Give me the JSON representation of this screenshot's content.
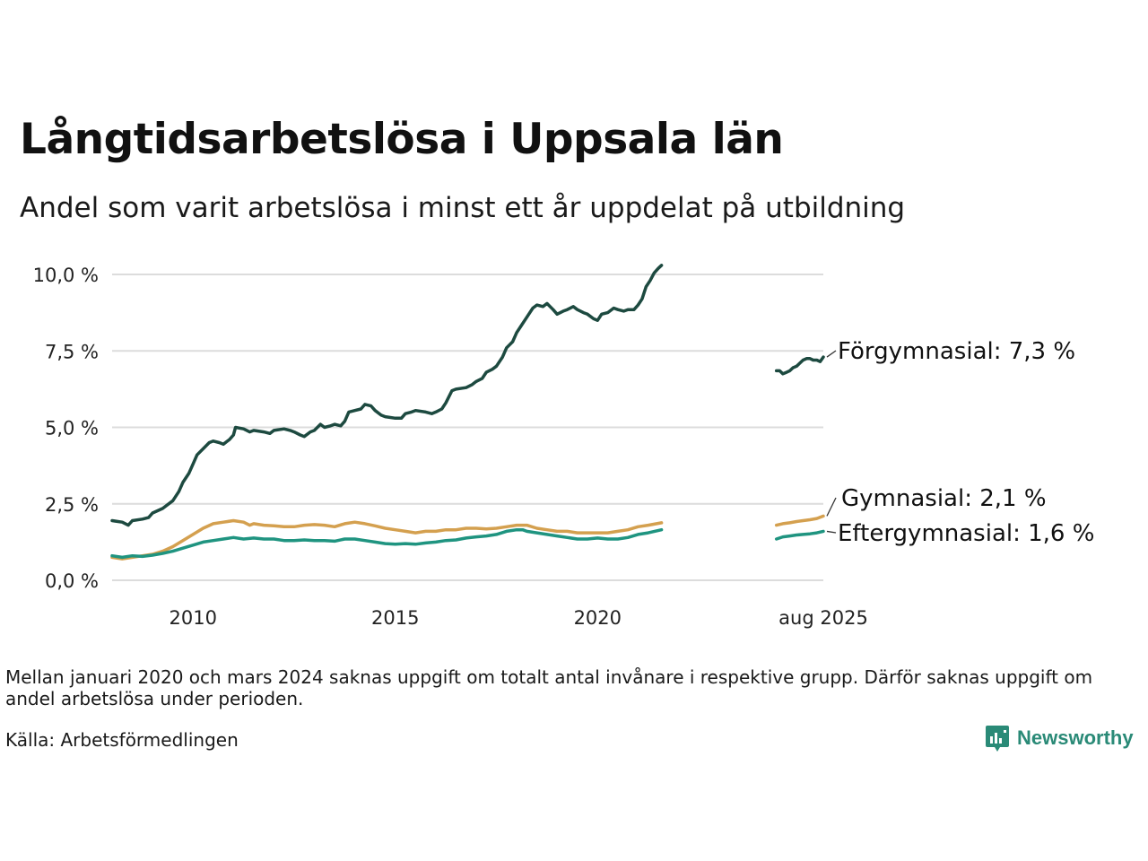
{
  "header": {
    "title": "Långtidsarbetslösa i Uppsala län",
    "subtitle": "Andel som varit arbetslösa i minst ett år uppdelat på utbildning"
  },
  "footer": {
    "note": "Mellan januari 2020 och mars 2024 saknas uppgift om totalt antal invånare i respektive grupp. Därför saknas uppgift om andel arbetslösa under perioden.",
    "source": "Källa: Arbetsförmedlingen",
    "logo_text": "Newsworthy",
    "logo_color": "#2a8a77"
  },
  "chart_data": {
    "type": "line",
    "x_unit": "decimal year",
    "xlim": [
      2008.0,
      2025.58
    ],
    "ylim": [
      0,
      10
    ],
    "y_ticks": [
      0,
      2.5,
      5,
      7.5,
      10
    ],
    "y_tick_labels": [
      "0,0 %",
      "2,5 %",
      "5,0 %",
      "7,5 %",
      "10,0 %"
    ],
    "x_ticks": [
      2010,
      2015,
      2020,
      2025.58
    ],
    "x_tick_labels": [
      "2010",
      "2015",
      "2020",
      "aug 2025"
    ],
    "grid": "horizontal",
    "legend": "direct labels at line ends",
    "series": [
      {
        "name": "Förgymnasial",
        "color": "#1d4a40",
        "end_label": "Förgymnasial: 7,3 %",
        "segments": [
          [
            [
              2008.0,
              1.95
            ],
            [
              2008.25,
              1.9
            ],
            [
              2008.4,
              1.8
            ],
            [
              2008.5,
              1.95
            ],
            [
              2008.75,
              2.0
            ],
            [
              2008.9,
              2.05
            ],
            [
              2009.0,
              2.2
            ],
            [
              2009.25,
              2.35
            ],
            [
              2009.5,
              2.6
            ],
            [
              2009.65,
              2.9
            ],
            [
              2009.75,
              3.2
            ],
            [
              2009.9,
              3.5
            ],
            [
              2010.0,
              3.8
            ],
            [
              2010.1,
              4.1
            ],
            [
              2010.25,
              4.3
            ],
            [
              2010.4,
              4.5
            ],
            [
              2010.5,
              4.55
            ],
            [
              2010.65,
              4.5
            ],
            [
              2010.75,
              4.45
            ],
            [
              2010.9,
              4.6
            ],
            [
              2011.0,
              4.75
            ],
            [
              2011.05,
              5.0
            ],
            [
              2011.25,
              4.95
            ],
            [
              2011.4,
              4.85
            ],
            [
              2011.5,
              4.9
            ],
            [
              2011.75,
              4.85
            ],
            [
              2011.9,
              4.8
            ],
            [
              2012.0,
              4.9
            ],
            [
              2012.25,
              4.95
            ],
            [
              2012.4,
              4.9
            ],
            [
              2012.5,
              4.85
            ],
            [
              2012.65,
              4.75
            ],
            [
              2012.75,
              4.7
            ],
            [
              2012.9,
              4.85
            ],
            [
              2013.0,
              4.9
            ],
            [
              2013.15,
              5.1
            ],
            [
              2013.25,
              5.0
            ],
            [
              2013.4,
              5.05
            ],
            [
              2013.5,
              5.1
            ],
            [
              2013.65,
              5.05
            ],
            [
              2013.75,
              5.2
            ],
            [
              2013.85,
              5.5
            ],
            [
              2014.0,
              5.55
            ],
            [
              2014.15,
              5.6
            ],
            [
              2014.25,
              5.75
            ],
            [
              2014.4,
              5.7
            ],
            [
              2014.5,
              5.55
            ],
            [
              2014.65,
              5.4
            ],
            [
              2014.75,
              5.35
            ],
            [
              2015.0,
              5.3
            ],
            [
              2015.15,
              5.3
            ],
            [
              2015.25,
              5.45
            ],
            [
              2015.4,
              5.5
            ],
            [
              2015.5,
              5.55
            ],
            [
              2015.75,
              5.5
            ],
            [
              2015.9,
              5.45
            ],
            [
              2016.0,
              5.5
            ],
            [
              2016.15,
              5.6
            ],
            [
              2016.25,
              5.8
            ],
            [
              2016.4,
              6.2
            ],
            [
              2016.5,
              6.25
            ],
            [
              2016.75,
              6.3
            ],
            [
              2016.9,
              6.4
            ],
            [
              2017.0,
              6.5
            ],
            [
              2017.15,
              6.6
            ],
            [
              2017.25,
              6.8
            ],
            [
              2017.4,
              6.9
            ],
            [
              2017.5,
              7.0
            ],
            [
              2017.65,
              7.3
            ],
            [
              2017.75,
              7.6
            ],
            [
              2017.9,
              7.8
            ],
            [
              2018.0,
              8.1
            ],
            [
              2018.1,
              8.3
            ],
            [
              2018.25,
              8.6
            ],
            [
              2018.4,
              8.9
            ],
            [
              2018.5,
              9.0
            ],
            [
              2018.65,
              8.95
            ],
            [
              2018.75,
              9.05
            ],
            [
              2018.9,
              8.85
            ],
            [
              2019.0,
              8.7
            ],
            [
              2019.15,
              8.8
            ],
            [
              2019.25,
              8.85
            ],
            [
              2019.4,
              8.95
            ],
            [
              2019.5,
              8.85
            ],
            [
              2019.65,
              8.75
            ],
            [
              2019.75,
              8.7
            ],
            [
              2019.9,
              8.55
            ],
            [
              2020.0,
              8.5
            ],
            [
              2020.1,
              8.7
            ],
            [
              2020.25,
              8.75
            ],
            [
              2020.4,
              8.9
            ],
            [
              2020.5,
              8.85
            ],
            [
              2020.65,
              8.8
            ],
            [
              2020.75,
              8.85
            ],
            [
              2020.9,
              8.85
            ],
            [
              2021.0,
              9.0
            ],
            [
              2021.1,
              9.2
            ],
            [
              2021.2,
              9.6
            ],
            [
              2021.3,
              9.8
            ],
            [
              2021.4,
              10.05
            ],
            [
              2021.5,
              10.2
            ],
            [
              2021.58,
              10.3
            ]
          ],
          [
            [
              2024.42,
              6.85
            ],
            [
              2024.5,
              6.85
            ],
            [
              2024.58,
              6.75
            ],
            [
              2024.67,
              6.8
            ],
            [
              2024.75,
              6.85
            ],
            [
              2024.83,
              6.95
            ],
            [
              2024.92,
              7.0
            ],
            [
              2025.0,
              7.1
            ],
            [
              2025.08,
              7.2
            ],
            [
              2025.17,
              7.25
            ],
            [
              2025.25,
              7.25
            ],
            [
              2025.33,
              7.2
            ],
            [
              2025.42,
              7.2
            ],
            [
              2025.5,
              7.15
            ],
            [
              2025.58,
              7.3
            ]
          ]
        ]
      },
      {
        "name": "Gymnasial",
        "color": "#d4a04f",
        "end_label": "Gymnasial: 2,1 %",
        "segments": [
          [
            [
              2008.0,
              0.75
            ],
            [
              2008.25,
              0.7
            ],
            [
              2008.5,
              0.75
            ],
            [
              2008.75,
              0.8
            ],
            [
              2009.0,
              0.85
            ],
            [
              2009.25,
              0.95
            ],
            [
              2009.5,
              1.1
            ],
            [
              2009.75,
              1.3
            ],
            [
              2010.0,
              1.5
            ],
            [
              2010.25,
              1.7
            ],
            [
              2010.5,
              1.85
            ],
            [
              2010.75,
              1.9
            ],
            [
              2011.0,
              1.95
            ],
            [
              2011.25,
              1.9
            ],
            [
              2011.4,
              1.8
            ],
            [
              2011.5,
              1.85
            ],
            [
              2011.75,
              1.8
            ],
            [
              2012.0,
              1.78
            ],
            [
              2012.25,
              1.75
            ],
            [
              2012.5,
              1.75
            ],
            [
              2012.75,
              1.8
            ],
            [
              2013.0,
              1.82
            ],
            [
              2013.25,
              1.8
            ],
            [
              2013.5,
              1.75
            ],
            [
              2013.75,
              1.85
            ],
            [
              2014.0,
              1.9
            ],
            [
              2014.25,
              1.85
            ],
            [
              2014.5,
              1.78
            ],
            [
              2014.75,
              1.7
            ],
            [
              2015.0,
              1.65
            ],
            [
              2015.25,
              1.6
            ],
            [
              2015.5,
              1.55
            ],
            [
              2015.75,
              1.6
            ],
            [
              2016.0,
              1.6
            ],
            [
              2016.25,
              1.65
            ],
            [
              2016.5,
              1.65
            ],
            [
              2016.75,
              1.7
            ],
            [
              2017.0,
              1.7
            ],
            [
              2017.25,
              1.68
            ],
            [
              2017.5,
              1.7
            ],
            [
              2017.75,
              1.75
            ],
            [
              2018.0,
              1.8
            ],
            [
              2018.25,
              1.8
            ],
            [
              2018.5,
              1.7
            ],
            [
              2018.75,
              1.65
            ],
            [
              2019.0,
              1.6
            ],
            [
              2019.25,
              1.6
            ],
            [
              2019.5,
              1.55
            ],
            [
              2019.75,
              1.55
            ],
            [
              2020.0,
              1.55
            ],
            [
              2020.25,
              1.55
            ],
            [
              2020.5,
              1.6
            ],
            [
              2020.75,
              1.65
            ],
            [
              2021.0,
              1.75
            ],
            [
              2021.25,
              1.8
            ],
            [
              2021.58,
              1.88
            ]
          ],
          [
            [
              2024.42,
              1.8
            ],
            [
              2024.58,
              1.85
            ],
            [
              2024.75,
              1.88
            ],
            [
              2024.92,
              1.92
            ],
            [
              2025.08,
              1.95
            ],
            [
              2025.25,
              1.98
            ],
            [
              2025.42,
              2.02
            ],
            [
              2025.58,
              2.1
            ]
          ]
        ]
      },
      {
        "name": "Eftergymnasial",
        "color": "#1f9480",
        "end_label": "Eftergymnasial: 1,6 %",
        "segments": [
          [
            [
              2008.0,
              0.8
            ],
            [
              2008.25,
              0.75
            ],
            [
              2008.5,
              0.8
            ],
            [
              2008.75,
              0.78
            ],
            [
              2009.0,
              0.82
            ],
            [
              2009.25,
              0.88
            ],
            [
              2009.5,
              0.95
            ],
            [
              2009.75,
              1.05
            ],
            [
              2010.0,
              1.15
            ],
            [
              2010.25,
              1.25
            ],
            [
              2010.5,
              1.3
            ],
            [
              2010.75,
              1.35
            ],
            [
              2011.0,
              1.4
            ],
            [
              2011.25,
              1.35
            ],
            [
              2011.5,
              1.38
            ],
            [
              2011.75,
              1.35
            ],
            [
              2012.0,
              1.35
            ],
            [
              2012.25,
              1.3
            ],
            [
              2012.5,
              1.3
            ],
            [
              2012.75,
              1.32
            ],
            [
              2013.0,
              1.3
            ],
            [
              2013.25,
              1.3
            ],
            [
              2013.5,
              1.28
            ],
            [
              2013.75,
              1.35
            ],
            [
              2014.0,
              1.35
            ],
            [
              2014.25,
              1.3
            ],
            [
              2014.5,
              1.25
            ],
            [
              2014.75,
              1.2
            ],
            [
              2015.0,
              1.18
            ],
            [
              2015.25,
              1.2
            ],
            [
              2015.5,
              1.18
            ],
            [
              2015.75,
              1.22
            ],
            [
              2016.0,
              1.25
            ],
            [
              2016.25,
              1.3
            ],
            [
              2016.5,
              1.32
            ],
            [
              2016.75,
              1.38
            ],
            [
              2017.0,
              1.42
            ],
            [
              2017.25,
              1.45
            ],
            [
              2017.5,
              1.5
            ],
            [
              2017.75,
              1.6
            ],
            [
              2018.0,
              1.65
            ],
            [
              2018.15,
              1.65
            ],
            [
              2018.25,
              1.6
            ],
            [
              2018.5,
              1.55
            ],
            [
              2018.75,
              1.5
            ],
            [
              2019.0,
              1.45
            ],
            [
              2019.25,
              1.4
            ],
            [
              2019.5,
              1.35
            ],
            [
              2019.75,
              1.35
            ],
            [
              2020.0,
              1.38
            ],
            [
              2020.25,
              1.35
            ],
            [
              2020.5,
              1.35
            ],
            [
              2020.75,
              1.4
            ],
            [
              2021.0,
              1.5
            ],
            [
              2021.25,
              1.55
            ],
            [
              2021.58,
              1.65
            ]
          ],
          [
            [
              2024.42,
              1.35
            ],
            [
              2024.58,
              1.42
            ],
            [
              2024.75,
              1.45
            ],
            [
              2024.92,
              1.48
            ],
            [
              2025.08,
              1.5
            ],
            [
              2025.25,
              1.52
            ],
            [
              2025.42,
              1.55
            ],
            [
              2025.58,
              1.6
            ]
          ]
        ]
      }
    ]
  }
}
